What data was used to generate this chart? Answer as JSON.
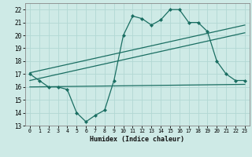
{
  "main_x": [
    0,
    1,
    2,
    3,
    4,
    5,
    6,
    7,
    8,
    9,
    10,
    11,
    12,
    13,
    14,
    15,
    16,
    17,
    18,
    19,
    20,
    21,
    22,
    23
  ],
  "main_y": [
    17.0,
    16.5,
    16.0,
    16.0,
    15.8,
    14.0,
    13.3,
    13.8,
    14.2,
    16.5,
    20.0,
    21.5,
    21.3,
    20.8,
    21.2,
    22.0,
    22.0,
    21.0,
    21.0,
    20.3,
    18.0,
    17.0,
    16.5,
    16.5
  ],
  "flat_line_x": [
    0,
    23
  ],
  "flat_line_y": [
    16.0,
    16.2
  ],
  "trend1_x": [
    0,
    23
  ],
  "trend1_y": [
    16.5,
    20.2
  ],
  "trend2_x": [
    0,
    23
  ],
  "trend2_y": [
    17.1,
    20.8
  ],
  "line_color": "#1a6e62",
  "bg_color": "#ceeae6",
  "grid_color": "#b2d8d3",
  "xlabel": "Humidex (Indice chaleur)",
  "xlim": [
    -0.5,
    23.5
  ],
  "ylim": [
    13,
    22.5
  ],
  "xticks": [
    0,
    1,
    2,
    3,
    4,
    5,
    6,
    7,
    8,
    9,
    10,
    11,
    12,
    13,
    14,
    15,
    16,
    17,
    18,
    19,
    20,
    21,
    22,
    23
  ],
  "yticks": [
    13,
    14,
    15,
    16,
    17,
    18,
    19,
    20,
    21,
    22
  ]
}
